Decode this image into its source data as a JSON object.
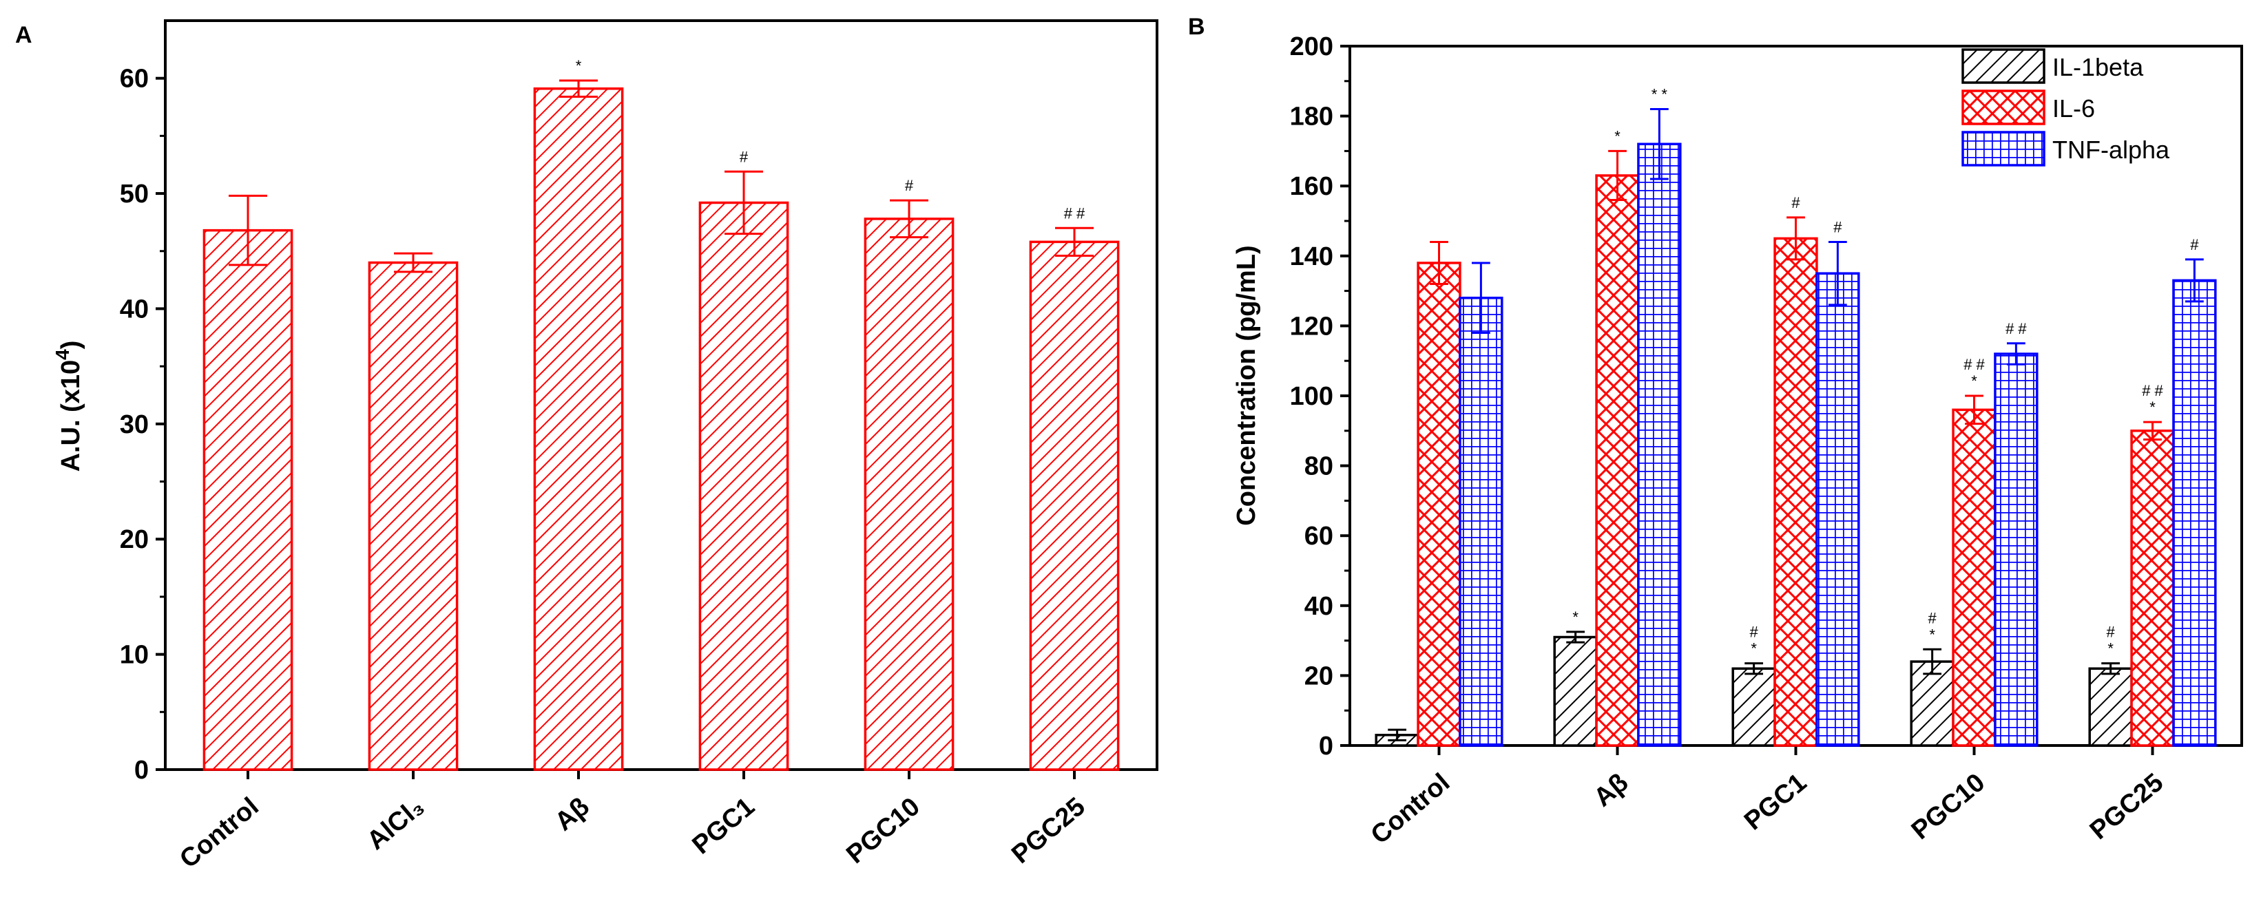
{
  "chart_data": [
    {
      "panel": "A",
      "type": "bar",
      "title": "",
      "xlabel": "",
      "ylabel": "A.U. (x10⁴)",
      "ylim": [
        0,
        65
      ],
      "yticks": [
        0,
        10,
        20,
        30,
        40,
        50,
        60
      ],
      "categories": [
        "Control",
        "AlCl₃",
        "Aβ",
        "PGC1",
        "PGC10",
        "PGC25"
      ],
      "series": [
        {
          "name": "A.U.",
          "color": "#ff0000",
          "pattern": "diagonal-hatch",
          "values": [
            46.8,
            44.0,
            59.1,
            49.2,
            47.8,
            45.8
          ],
          "errors": [
            3.0,
            0.8,
            0.7,
            2.7,
            1.6,
            1.2
          ],
          "annotations": [
            "",
            "",
            "*",
            "#",
            "#",
            "# #"
          ]
        }
      ]
    },
    {
      "panel": "B",
      "type": "bar",
      "title": "",
      "xlabel": "",
      "ylabel": "Concentration (pg/mL)",
      "ylim": [
        0,
        200
      ],
      "yticks": [
        0,
        20,
        40,
        60,
        80,
        100,
        120,
        140,
        160,
        180,
        200
      ],
      "categories": [
        "Control",
        "Aβ",
        "PGC1",
        "PGC10",
        "PGC25"
      ],
      "legend_position": "top-right",
      "series": [
        {
          "name": "IL-1beta",
          "color": "#000000",
          "pattern": "diagonal-hatch",
          "values": [
            3,
            31,
            22,
            24,
            22
          ],
          "errors": [
            1.5,
            1.5,
            1.5,
            3.5,
            1.5
          ],
          "annotations": [
            "",
            "*",
            "*#",
            "*#",
            "*#"
          ]
        },
        {
          "name": "IL-6",
          "color": "#ff0000",
          "pattern": "crosshatch",
          "values": [
            138,
            163,
            145,
            96,
            90
          ],
          "errors": [
            6,
            7,
            6,
            4,
            2.5
          ],
          "annotations": [
            "",
            "*",
            "#",
            "*##",
            "*##"
          ]
        },
        {
          "name": "TNF-alpha",
          "color": "#0000ff",
          "pattern": "grid",
          "values": [
            128,
            172,
            135,
            112,
            133
          ],
          "errors": [
            10,
            10,
            9,
            3,
            6
          ],
          "annotations": [
            "",
            "* *",
            "#",
            "# #",
            "#"
          ]
        }
      ]
    }
  ]
}
